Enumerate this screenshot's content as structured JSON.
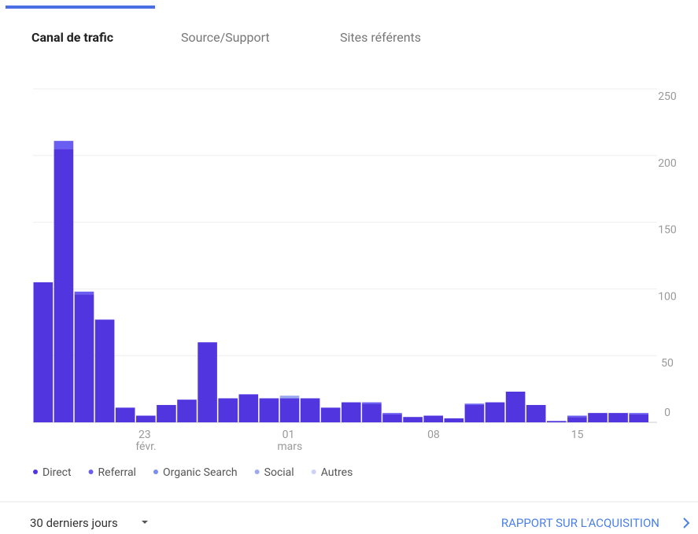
{
  "tabs": [
    "Canal de trafic",
    "Source/Support",
    "Sites référents"
  ],
  "chart_data": {
    "type": "bar",
    "stacked": true,
    "categories": [
      null,
      null,
      null,
      null,
      null,
      "23 févr.",
      null,
      null,
      null,
      null,
      null,
      null,
      "01 mars",
      null,
      null,
      null,
      null,
      null,
      null,
      "08",
      null,
      null,
      null,
      null,
      null,
      null,
      "15",
      null,
      null,
      null
    ],
    "series": [
      {
        "name": "Direct",
        "color": "#5136e0",
        "values": [
          105,
          205,
          96,
          77,
          11,
          5,
          13,
          17,
          60,
          18,
          21,
          18,
          18,
          18,
          11,
          15,
          14,
          6,
          4,
          5,
          3,
          13,
          15,
          23,
          13,
          1,
          4,
          7,
          7,
          6
        ]
      },
      {
        "name": "Referral",
        "color": "#6a5df2",
        "values": [
          0,
          6,
          2,
          0,
          0,
          0,
          0,
          0,
          0,
          0,
          0,
          0,
          0,
          0,
          0,
          0,
          1,
          1,
          0,
          0,
          0,
          1,
          0,
          0,
          0,
          0,
          1,
          0,
          0,
          1
        ]
      },
      {
        "name": "Organic Search",
        "color": "#7b8df1",
        "values": [
          0,
          0,
          0,
          0,
          0,
          0,
          0,
          0,
          0,
          0,
          0,
          0,
          0,
          0,
          0,
          0,
          0,
          0,
          0,
          0,
          0,
          0,
          0,
          0,
          0,
          0,
          0,
          0,
          0,
          0
        ]
      },
      {
        "name": "Social",
        "color": "#9eaaf0",
        "values": [
          0,
          0,
          0,
          0,
          0,
          0,
          0,
          0,
          0,
          0,
          0,
          0,
          2,
          0,
          0,
          0,
          0,
          0,
          0,
          0,
          0,
          0,
          0,
          0,
          0,
          0,
          0,
          0,
          0,
          0
        ]
      },
      {
        "name": "Autres",
        "color": "#cdd1f6",
        "values": [
          0,
          0,
          0,
          0,
          0,
          0,
          0,
          0,
          0,
          0,
          0,
          0,
          0,
          0,
          0,
          0,
          0,
          0,
          0,
          0,
          0,
          0,
          0,
          0,
          0,
          0,
          0,
          0,
          0,
          0
        ]
      }
    ],
    "ylim": [
      0,
      250
    ],
    "yticks": [
      0,
      50,
      100,
      150,
      200,
      250
    ],
    "grid": true
  },
  "footer": {
    "period": "30 derniers jours",
    "link": "RAPPORT SUR L'ACQUISITION"
  }
}
